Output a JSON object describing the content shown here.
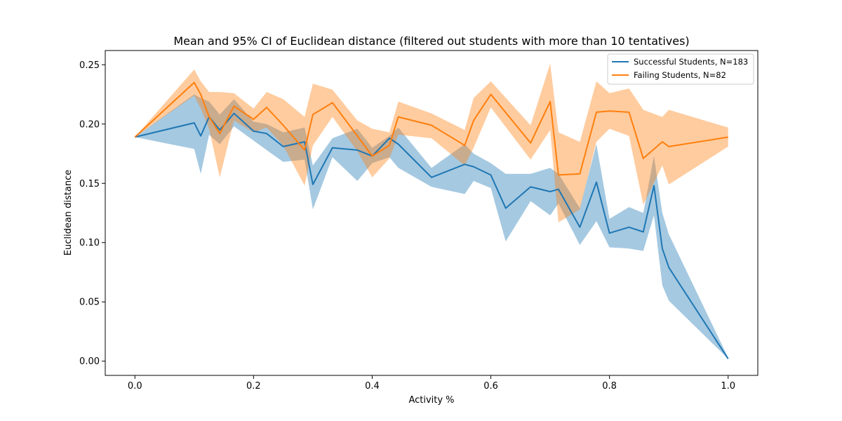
{
  "chart_data": {
    "type": "line",
    "title": "Mean and 95% CI of Euclidean distance (filtered out students with more than 10 tentatives)",
    "xlabel": "Activity %",
    "ylabel": "Euclidean distance",
    "xlim": [
      -0.05,
      1.05
    ],
    "ylim": [
      -0.012,
      0.262
    ],
    "xticks": [
      0.0,
      0.2,
      0.4,
      0.6,
      0.8,
      1.0
    ],
    "xtick_labels": [
      "0.0",
      "0.2",
      "0.4",
      "0.6",
      "0.8",
      "1.0"
    ],
    "yticks": [
      0.0,
      0.05,
      0.1,
      0.15,
      0.2,
      0.25
    ],
    "ytick_labels": [
      "0.00",
      "0.05",
      "0.10",
      "0.15",
      "0.20",
      "0.25"
    ],
    "grid": false,
    "legend_position": "top-right",
    "series": [
      {
        "name": "Successful Students, N=183",
        "color": "#1f77b4",
        "band_color": "#1f77b4",
        "band_opacity": 0.4,
        "x": [
          0.0,
          0.1,
          0.111,
          0.125,
          0.143,
          0.167,
          0.2,
          0.222,
          0.25,
          0.286,
          0.3,
          0.333,
          0.375,
          0.4,
          0.429,
          0.444,
          0.5,
          0.556,
          0.571,
          0.6,
          0.625,
          0.667,
          0.7,
          0.714,
          0.75,
          0.778,
          0.8,
          0.833,
          0.857,
          0.875,
          0.889,
          0.9,
          1.0
        ],
        "mean": [
          0.189,
          0.201,
          0.19,
          0.206,
          0.195,
          0.209,
          0.194,
          0.192,
          0.181,
          0.185,
          0.149,
          0.18,
          0.178,
          0.173,
          0.188,
          0.183,
          0.155,
          0.166,
          0.164,
          0.157,
          0.129,
          0.147,
          0.143,
          0.145,
          0.113,
          0.151,
          0.108,
          0.113,
          0.109,
          0.148,
          0.095,
          0.079,
          0.002
        ],
        "lower": [
          0.189,
          0.179,
          0.158,
          0.191,
          0.183,
          0.198,
          0.186,
          0.178,
          0.168,
          0.17,
          0.128,
          0.172,
          0.152,
          0.167,
          0.172,
          0.163,
          0.147,
          0.141,
          0.152,
          0.146,
          0.101,
          0.135,
          0.123,
          0.133,
          0.098,
          0.118,
          0.096,
          0.095,
          0.093,
          0.123,
          0.064,
          0.051,
          0.002
        ],
        "upper": [
          0.189,
          0.225,
          0.222,
          0.219,
          0.208,
          0.221,
          0.202,
          0.2,
          0.193,
          0.197,
          0.165,
          0.188,
          0.196,
          0.18,
          0.19,
          0.197,
          0.163,
          0.183,
          0.175,
          0.167,
          0.158,
          0.158,
          0.163,
          0.158,
          0.129,
          0.183,
          0.12,
          0.13,
          0.125,
          0.173,
          0.125,
          0.107,
          0.003
        ]
      },
      {
        "name": "Failing Students, N=82",
        "color": "#ff7f0e",
        "band_color": "#ff7f0e",
        "band_opacity": 0.4,
        "x": [
          0.0,
          0.1,
          0.111,
          0.125,
          0.143,
          0.167,
          0.2,
          0.222,
          0.25,
          0.286,
          0.3,
          0.333,
          0.375,
          0.4,
          0.429,
          0.444,
          0.5,
          0.556,
          0.571,
          0.6,
          0.667,
          0.7,
          0.714,
          0.75,
          0.778,
          0.8,
          0.833,
          0.857,
          0.889,
          0.9,
          1.0
        ],
        "mean": [
          0.189,
          0.235,
          0.225,
          0.206,
          0.192,
          0.215,
          0.204,
          0.214,
          0.199,
          0.178,
          0.208,
          0.218,
          0.19,
          0.173,
          0.182,
          0.206,
          0.199,
          0.182,
          0.203,
          0.225,
          0.184,
          0.219,
          0.157,
          0.158,
          0.21,
          0.211,
          0.21,
          0.171,
          0.185,
          0.181,
          0.189
        ],
        "lower": [
          0.189,
          0.224,
          0.213,
          0.196,
          0.155,
          0.203,
          0.193,
          0.197,
          0.182,
          0.148,
          0.182,
          0.206,
          0.177,
          0.155,
          0.171,
          0.191,
          0.188,
          0.165,
          0.18,
          0.214,
          0.17,
          0.195,
          0.117,
          0.128,
          0.185,
          0.196,
          0.19,
          0.132,
          0.165,
          0.149,
          0.181
        ],
        "upper": [
          0.189,
          0.246,
          0.236,
          0.227,
          0.227,
          0.226,
          0.213,
          0.227,
          0.221,
          0.206,
          0.234,
          0.229,
          0.203,
          0.196,
          0.193,
          0.219,
          0.209,
          0.195,
          0.222,
          0.236,
          0.199,
          0.251,
          0.193,
          0.185,
          0.236,
          0.226,
          0.23,
          0.212,
          0.206,
          0.212,
          0.197
        ]
      }
    ]
  }
}
